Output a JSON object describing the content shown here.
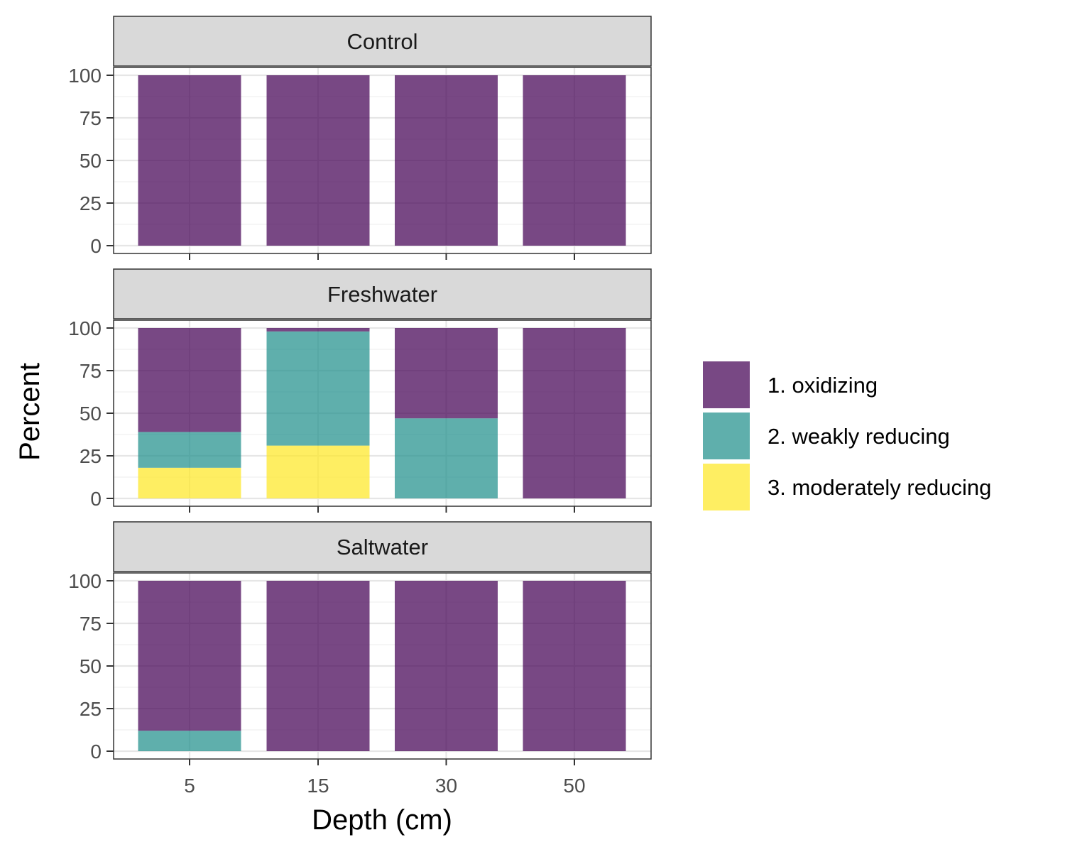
{
  "chart_data": {
    "type": "bar",
    "stacked": true,
    "xlabel": "Depth (cm)",
    "ylabel": "Percent",
    "categories": [
      "5",
      "15",
      "30",
      "50"
    ],
    "ylim": [
      0,
      100
    ],
    "yticks": [
      0,
      25,
      50,
      75,
      100
    ],
    "grid": true,
    "legend_position": "right",
    "series": [
      {
        "name": "1. oxidizing",
        "color": "#440154"
      },
      {
        "name": "2. weakly reducing",
        "color": "#21908C"
      },
      {
        "name": "3. moderately reducing",
        "color": "#FDE725"
      }
    ],
    "panels": [
      {
        "title": "Control",
        "values": {
          "1. oxidizing": [
            100,
            100,
            100,
            100
          ],
          "2. weakly reducing": [
            0,
            0,
            0,
            0
          ],
          "3. moderately reducing": [
            0,
            0,
            0,
            0
          ]
        }
      },
      {
        "title": "Freshwater",
        "values": {
          "1. oxidizing": [
            61,
            2,
            53,
            100
          ],
          "2. weakly reducing": [
            21,
            67,
            47,
            0
          ],
          "3. moderately reducing": [
            18,
            31,
            0,
            0
          ]
        }
      },
      {
        "title": "Saltwater",
        "values": {
          "1. oxidizing": [
            88,
            100,
            100,
            100
          ],
          "2. weakly reducing": [
            12,
            0,
            0,
            0
          ],
          "3. moderately reducing": [
            0,
            0,
            0,
            0
          ]
        }
      }
    ]
  }
}
